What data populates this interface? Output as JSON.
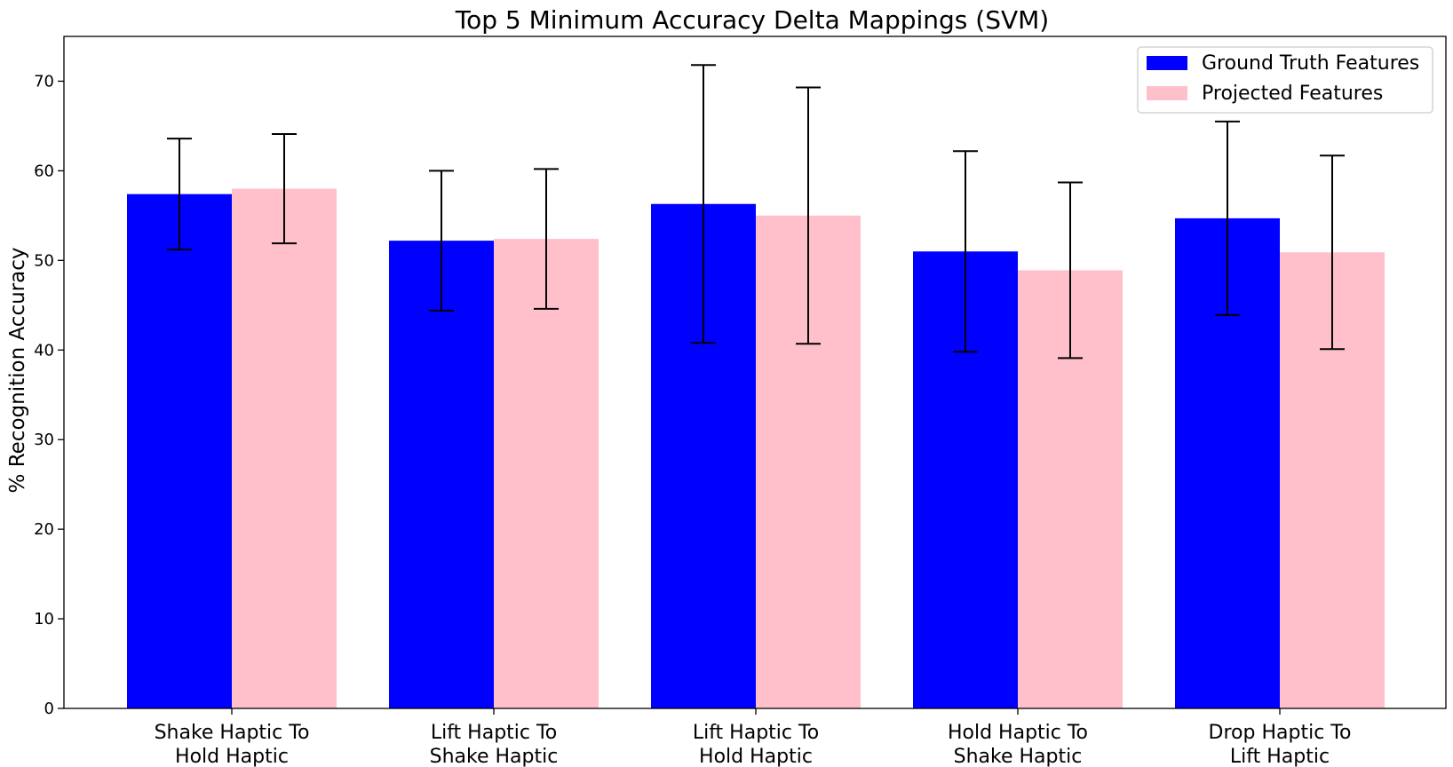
{
  "chart_data": {
    "type": "bar",
    "title": "Top 5 Minimum Accuracy Delta Mappings (SVM)",
    "xlabel": "",
    "ylabel": "% Recognition Accuracy",
    "ylim": [
      0,
      75
    ],
    "yticks": [
      0,
      10,
      20,
      30,
      40,
      50,
      60,
      70
    ],
    "grid": false,
    "legend_position": "top-right",
    "categories": [
      [
        "Shake Haptic To",
        "Hold Haptic"
      ],
      [
        "Lift Haptic To",
        "Shake Haptic"
      ],
      [
        "Lift Haptic To",
        "Hold Haptic"
      ],
      [
        "Hold Haptic To",
        "Shake Haptic"
      ],
      [
        "Drop Haptic To",
        "Lift Haptic"
      ]
    ],
    "series": [
      {
        "name": "Ground Truth Features",
        "color": "#0000ff",
        "values": [
          57.4,
          52.2,
          56.3,
          51.0,
          54.7
        ],
        "error": [
          6.2,
          7.8,
          15.5,
          11.2,
          10.8
        ]
      },
      {
        "name": "Projected Features",
        "color": "#ffc0cb",
        "values": [
          58.0,
          52.4,
          55.0,
          48.9,
          50.9
        ],
        "error": [
          6.1,
          7.8,
          14.3,
          9.8,
          10.8
        ]
      }
    ]
  }
}
